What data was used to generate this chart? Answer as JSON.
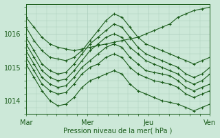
{
  "background_color": "#cce8d8",
  "line_color": "#1a5c1a",
  "grid_color": "#aaccbb",
  "xlabel": "Pression niveau de la mer( hPa )",
  "yticks": [
    1014,
    1015,
    1016
  ],
  "ylim": [
    1013.6,
    1016.9
  ],
  "xlim": [
    0,
    72
  ],
  "xtick_positions": [
    0,
    24,
    48,
    72
  ],
  "xtick_labels": [
    "Mar",
    "Mer",
    "Jeu",
    "Ven"
  ],
  "series": [
    [
      1016.5,
      1016.2,
      1015.9,
      1015.7,
      1015.6,
      1015.55,
      1015.5,
      1015.55,
      1015.6,
      1015.65,
      1015.7,
      1015.75,
      1015.8,
      1015.85,
      1015.9,
      1016.0,
      1016.1,
      1016.2,
      1016.3,
      1016.5,
      1016.6,
      1016.7,
      1016.75,
      1016.8
    ],
    [
      1016.2,
      1015.8,
      1015.5,
      1015.3,
      1015.25,
      1015.2,
      1015.3,
      1015.5,
      1015.8,
      1016.1,
      1016.4,
      1016.6,
      1016.5,
      1016.2,
      1015.9,
      1015.7,
      1015.6,
      1015.5,
      1015.4,
      1015.3,
      1015.2,
      1015.1,
      1015.2,
      1015.3
    ],
    [
      1015.9,
      1015.5,
      1015.1,
      1014.9,
      1014.8,
      1014.85,
      1015.1,
      1015.4,
      1015.7,
      1015.9,
      1016.1,
      1016.3,
      1016.2,
      1015.9,
      1015.6,
      1015.4,
      1015.3,
      1015.2,
      1015.1,
      1015.0,
      1014.8,
      1014.7,
      1014.8,
      1015.0
    ],
    [
      1015.7,
      1015.3,
      1014.9,
      1014.7,
      1014.6,
      1014.65,
      1014.9,
      1015.2,
      1015.5,
      1015.7,
      1015.9,
      1016.0,
      1015.9,
      1015.6,
      1015.4,
      1015.2,
      1015.1,
      1015.0,
      1014.9,
      1014.8,
      1014.6,
      1014.5,
      1014.6,
      1014.8
    ],
    [
      1015.5,
      1015.1,
      1014.7,
      1014.5,
      1014.4,
      1014.45,
      1014.7,
      1015.0,
      1015.2,
      1015.4,
      1015.6,
      1015.7,
      1015.6,
      1015.3,
      1015.1,
      1014.9,
      1014.85,
      1014.8,
      1014.75,
      1014.6,
      1014.4,
      1014.3,
      1014.4,
      1014.5
    ],
    [
      1015.3,
      1014.9,
      1014.5,
      1014.3,
      1014.2,
      1014.25,
      1014.5,
      1014.8,
      1015.0,
      1015.1,
      1015.3,
      1015.4,
      1015.3,
      1015.0,
      1014.8,
      1014.7,
      1014.6,
      1014.55,
      1014.5,
      1014.4,
      1014.2,
      1014.1,
      1014.2,
      1014.3
    ],
    [
      1015.1,
      1014.7,
      1014.3,
      1014.0,
      1013.85,
      1013.9,
      1014.1,
      1014.4,
      1014.6,
      1014.7,
      1014.8,
      1014.9,
      1014.8,
      1014.5,
      1014.3,
      1014.2,
      1014.1,
      1014.0,
      1013.95,
      1013.9,
      1013.8,
      1013.7,
      1013.8,
      1013.9
    ]
  ]
}
